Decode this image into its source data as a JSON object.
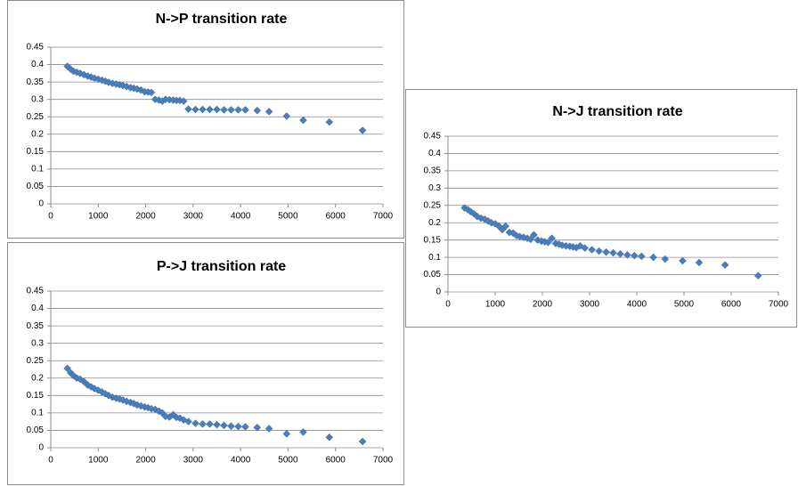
{
  "chart_data": [
    {
      "type": "scatter",
      "title": "N->P transition rate",
      "color": "#4a7ebb",
      "grid": true,
      "xlim": [
        0,
        7000
      ],
      "ylim": [
        0,
        0.45
      ],
      "xticks": [
        0,
        1000,
        2000,
        3000,
        4000,
        5000,
        6000,
        7000
      ],
      "yticks": [
        0,
        0.05,
        0.1,
        0.15,
        0.2,
        0.25,
        0.3,
        0.35,
        0.4,
        0.45
      ],
      "x": [
        350,
        420,
        480,
        550,
        620,
        700,
        780,
        850,
        920,
        1000,
        1080,
        1150,
        1220,
        1300,
        1380,
        1450,
        1520,
        1600,
        1680,
        1750,
        1820,
        1900,
        1980,
        2050,
        2120,
        2200,
        2280,
        2350,
        2420,
        2500,
        2580,
        2650,
        2720,
        2800,
        2900,
        3050,
        3200,
        3350,
        3500,
        3650,
        3800,
        3950,
        4100,
        4350,
        4600,
        4970,
        5320,
        5870,
        6570
      ],
      "values": [
        0.395,
        0.387,
        0.381,
        0.378,
        0.375,
        0.371,
        0.367,
        0.364,
        0.361,
        0.358,
        0.355,
        0.352,
        0.349,
        0.346,
        0.344,
        0.342,
        0.34,
        0.337,
        0.334,
        0.332,
        0.33,
        0.327,
        0.322,
        0.321,
        0.32,
        0.3,
        0.298,
        0.295,
        0.3,
        0.299,
        0.298,
        0.297,
        0.297,
        0.295,
        0.272,
        0.271,
        0.271,
        0.271,
        0.271,
        0.27,
        0.27,
        0.27,
        0.27,
        0.268,
        0.265,
        0.252,
        0.24,
        0.235,
        0.211
      ]
    },
    {
      "type": "scatter",
      "title": "N->J transition rate",
      "color": "#4a7ebb",
      "grid": true,
      "xlim": [
        0,
        7000
      ],
      "ylim": [
        0,
        0.45
      ],
      "xticks": [
        0,
        1000,
        2000,
        3000,
        4000,
        5000,
        6000,
        7000
      ],
      "yticks": [
        0,
        0.05,
        0.1,
        0.15,
        0.2,
        0.25,
        0.3,
        0.35,
        0.4,
        0.45
      ],
      "x": [
        350,
        420,
        480,
        550,
        620,
        700,
        780,
        850,
        920,
        1000,
        1080,
        1150,
        1220,
        1300,
        1380,
        1450,
        1520,
        1600,
        1680,
        1750,
        1820,
        1900,
        1980,
        2050,
        2120,
        2200,
        2280,
        2350,
        2420,
        2500,
        2580,
        2650,
        2720,
        2800,
        2900,
        3050,
        3200,
        3350,
        3500,
        3650,
        3800,
        3950,
        4100,
        4350,
        4600,
        4970,
        5320,
        5870,
        6570
      ],
      "values": [
        0.243,
        0.238,
        0.232,
        0.226,
        0.218,
        0.213,
        0.21,
        0.205,
        0.2,
        0.197,
        0.19,
        0.18,
        0.19,
        0.172,
        0.17,
        0.163,
        0.16,
        0.158,
        0.155,
        0.152,
        0.165,
        0.15,
        0.147,
        0.145,
        0.143,
        0.155,
        0.14,
        0.138,
        0.135,
        0.133,
        0.132,
        0.13,
        0.128,
        0.133,
        0.127,
        0.122,
        0.118,
        0.115,
        0.113,
        0.11,
        0.107,
        0.105,
        0.103,
        0.1,
        0.095,
        0.09,
        0.085,
        0.078,
        0.047
      ]
    },
    {
      "type": "scatter",
      "title": "P->J transition rate",
      "color": "#4a7ebb",
      "grid": true,
      "xlim": [
        0,
        7000
      ],
      "ylim": [
        0,
        0.45
      ],
      "xticks": [
        0,
        1000,
        2000,
        3000,
        4000,
        5000,
        6000,
        7000
      ],
      "yticks": [
        0,
        0.05,
        0.1,
        0.15,
        0.2,
        0.25,
        0.3,
        0.35,
        0.4,
        0.45
      ],
      "x": [
        350,
        420,
        480,
        550,
        620,
        700,
        780,
        850,
        920,
        1000,
        1080,
        1150,
        1220,
        1300,
        1380,
        1450,
        1520,
        1600,
        1680,
        1750,
        1820,
        1900,
        1980,
        2050,
        2120,
        2200,
        2280,
        2350,
        2420,
        2500,
        2580,
        2650,
        2720,
        2800,
        2900,
        3050,
        3200,
        3350,
        3500,
        3650,
        3800,
        3950,
        4100,
        4350,
        4600,
        4970,
        5320,
        5870,
        6570
      ],
      "values": [
        0.228,
        0.215,
        0.207,
        0.2,
        0.197,
        0.19,
        0.18,
        0.175,
        0.17,
        0.165,
        0.16,
        0.155,
        0.15,
        0.145,
        0.142,
        0.14,
        0.137,
        0.133,
        0.13,
        0.127,
        0.123,
        0.12,
        0.117,
        0.115,
        0.112,
        0.11,
        0.105,
        0.1,
        0.09,
        0.088,
        0.095,
        0.087,
        0.085,
        0.08,
        0.075,
        0.07,
        0.068,
        0.068,
        0.066,
        0.064,
        0.062,
        0.061,
        0.06,
        0.058,
        0.055,
        0.04,
        0.045,
        0.03,
        0.018
      ]
    }
  ]
}
